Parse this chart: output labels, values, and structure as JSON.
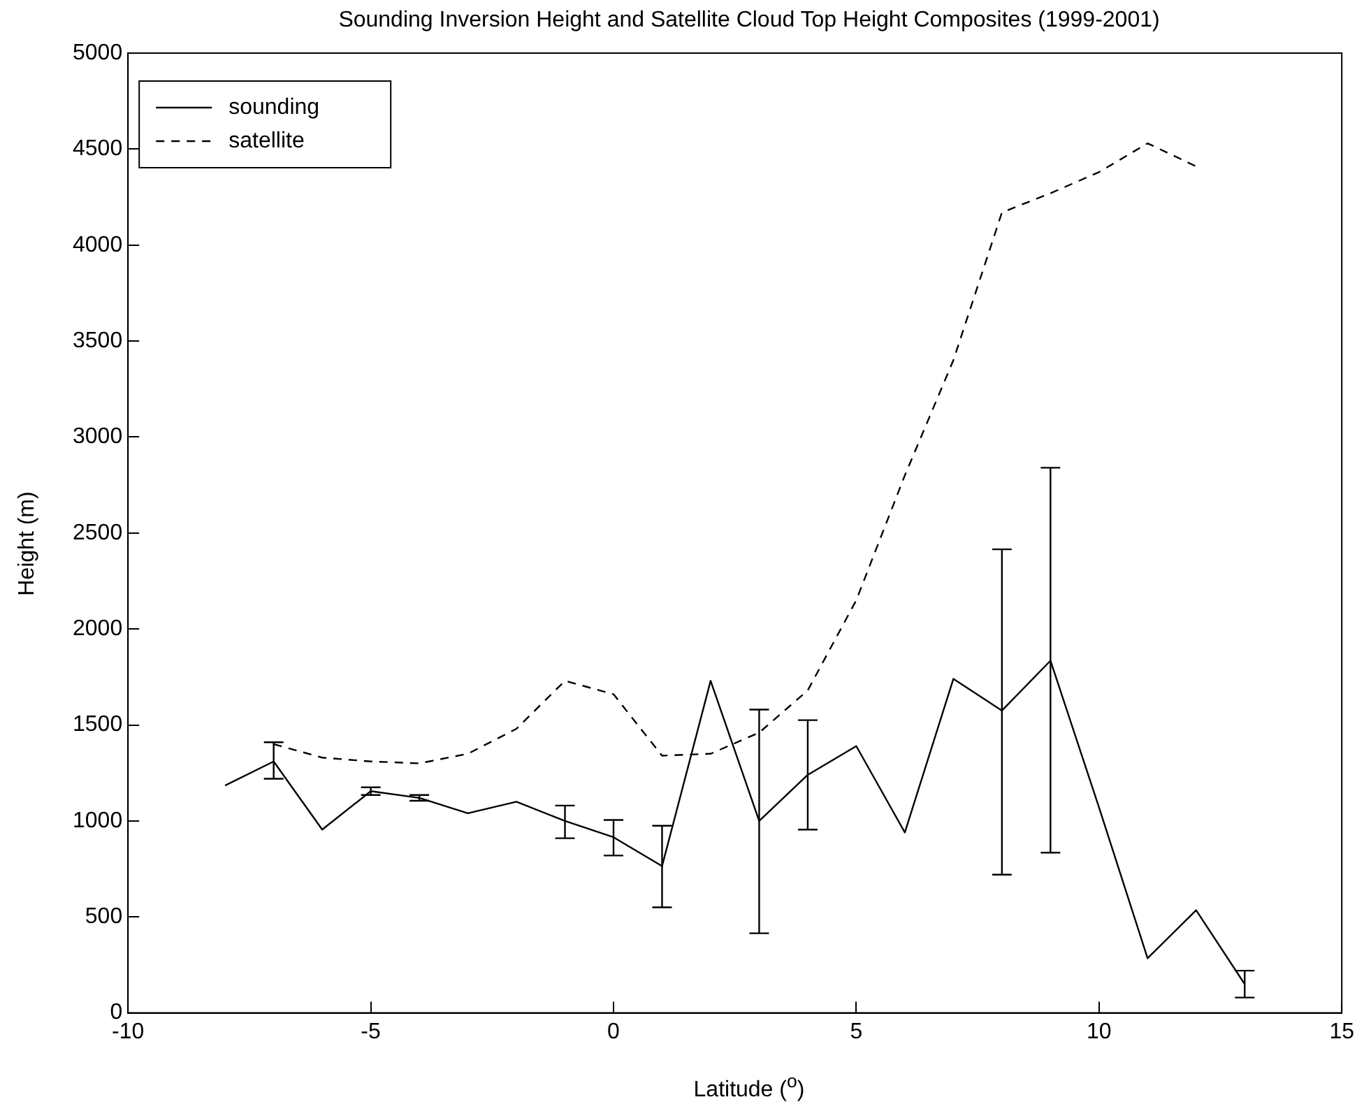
{
  "chart_data": {
    "type": "line",
    "title": "Sounding Inversion Height and Satellite Cloud Top Height Composites (1999-2001)",
    "xlabel": "Latitude ($^{o}$)",
    "ylabel": "Height (m)",
    "xlim": [
      -10,
      15
    ],
    "xticks": [
      -10,
      -5,
      0,
      5,
      10,
      15
    ],
    "ylim": [
      0,
      5000
    ],
    "yticks": [
      0,
      500,
      1000,
      1500,
      2000,
      2500,
      3000,
      3500,
      4000,
      4500,
      5000
    ],
    "grid": false,
    "legend": "top left",
    "marker": "none",
    "series": [
      {
        "name": "sounding",
        "color": "#000000",
        "line_style": "solid",
        "x": [
          -8,
          -7,
          -6,
          -5,
          -4,
          -3,
          -2,
          -1,
          0,
          1,
          2,
          3,
          4,
          5,
          6,
          7,
          8,
          9,
          10,
          11,
          12,
          13
        ],
        "values": [
          1185,
          1310,
          955,
          1155,
          1120,
          1040,
          1100,
          1000,
          915,
          765,
          1730,
          1000,
          1240,
          1390,
          940,
          1740,
          1575,
          1835,
          1070,
          285,
          535,
          150
        ],
        "errors": [
          null,
          [
            1220,
            1410
          ],
          null,
          [
            1135,
            1175
          ],
          [
            1105,
            1135
          ],
          null,
          null,
          [
            910,
            1080
          ],
          [
            820,
            1005
          ],
          [
            550,
            975
          ],
          null,
          [
            415,
            1580
          ],
          [
            955,
            1525
          ],
          null,
          null,
          null,
          [
            720,
            2415
          ],
          [
            835,
            2840
          ],
          null,
          null,
          null,
          [
            80,
            220
          ]
        ]
      },
      {
        "name": "satellite",
        "color": "#000000",
        "line_style": "dashed",
        "x": [
          -7,
          -6,
          -5,
          -4,
          -3,
          -2,
          -1,
          0,
          1,
          2,
          3,
          4,
          5,
          6,
          7,
          8,
          9,
          10,
          11,
          12
        ],
        "values": [
          1400,
          1330,
          1310,
          1300,
          1350,
          1480,
          1730,
          1660,
          1340,
          1350,
          1460,
          1680,
          2150,
          2800,
          3400,
          4170,
          4270,
          4380,
          4530,
          4410
        ]
      }
    ]
  }
}
